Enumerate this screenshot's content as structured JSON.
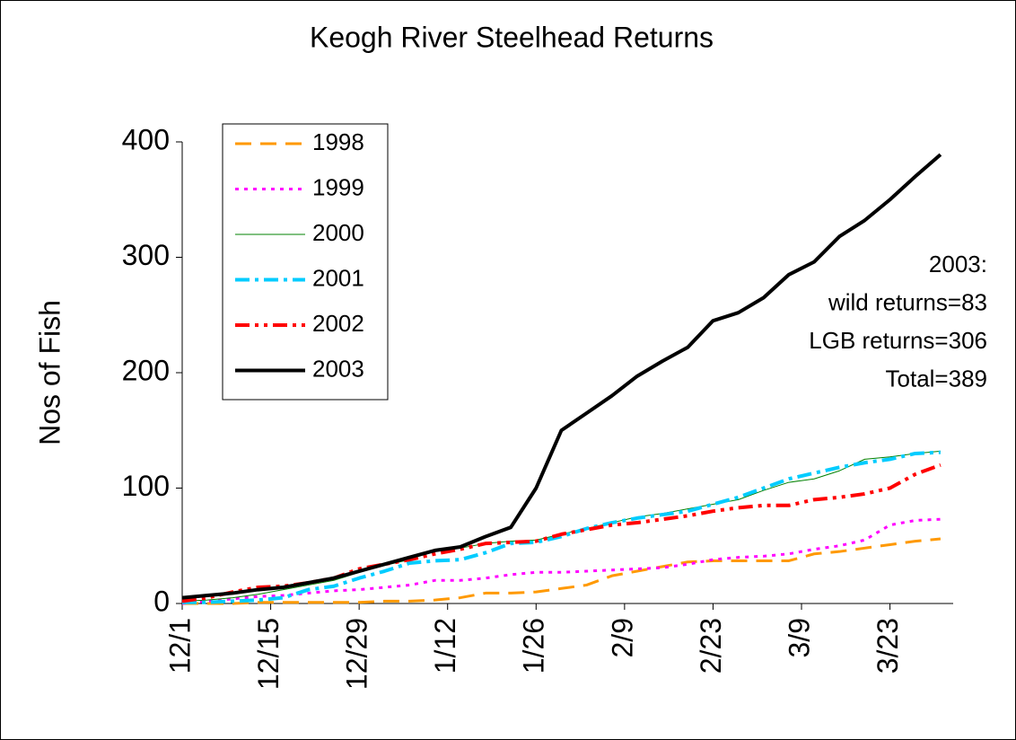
{
  "chart_data": {
    "type": "line",
    "title": "Keogh River Steelhead Returns",
    "y_label": "Nos of Fish",
    "x": [
      0,
      4,
      8,
      12,
      16,
      20,
      24,
      28,
      32,
      36,
      40,
      44,
      48,
      52,
      56,
      60,
      64,
      68,
      72,
      76,
      80,
      84,
      88,
      92,
      96,
      100,
      104,
      108,
      112,
      116,
      120
    ],
    "xlim": [
      0,
      122
    ],
    "xticks": [
      {
        "value": 0,
        "label": "12/1"
      },
      {
        "value": 14,
        "label": "12/15"
      },
      {
        "value": 28,
        "label": "12/29"
      },
      {
        "value": 42,
        "label": "1/12"
      },
      {
        "value": 56,
        "label": "1/26"
      },
      {
        "value": 70,
        "label": "2/9"
      },
      {
        "value": 84,
        "label": "2/23"
      },
      {
        "value": 98,
        "label": "3/9"
      },
      {
        "value": 112,
        "label": "3/23"
      }
    ],
    "ylim": [
      0,
      400
    ],
    "yticks": [
      0,
      100,
      200,
      300,
      400
    ],
    "series": [
      {
        "name": "1998",
        "color": "#ff9900",
        "values": [
          0,
          0,
          0,
          1,
          1,
          1,
          1,
          1,
          2,
          2,
          3,
          5,
          9,
          9,
          10,
          13,
          16,
          24,
          28,
          32,
          36,
          37,
          37,
          37,
          37,
          43,
          45,
          48,
          51,
          54,
          56
        ]
      },
      {
        "name": "1999",
        "color": "#ff00ff",
        "values": [
          0,
          2,
          4,
          6,
          7,
          9,
          11,
          12,
          14,
          16,
          20,
          20,
          22,
          25,
          27,
          27,
          28,
          29,
          30,
          31,
          34,
          38,
          40,
          41,
          43,
          47,
          50,
          55,
          68,
          72,
          73
        ]
      },
      {
        "name": "2000",
        "color": "#008000",
        "values": [
          2,
          3,
          5,
          8,
          12,
          16,
          20,
          27,
          33,
          38,
          46,
          48,
          52,
          54,
          55,
          60,
          65,
          70,
          75,
          78,
          82,
          86,
          90,
          98,
          105,
          108,
          115,
          125,
          127,
          130,
          132
        ]
      },
      {
        "name": "2001",
        "color": "#00ccff",
        "values": [
          1,
          1,
          2,
          3,
          5,
          12,
          15,
          22,
          28,
          35,
          37,
          38,
          44,
          52,
          53,
          58,
          65,
          70,
          74,
          77,
          80,
          86,
          92,
          100,
          108,
          113,
          118,
          122,
          125,
          130,
          131
        ]
      },
      {
        "name": "2002",
        "color": "#ff0000",
        "values": [
          2,
          5,
          10,
          14,
          15,
          18,
          22,
          30,
          34,
          38,
          43,
          47,
          52,
          53,
          54,
          60,
          64,
          68,
          70,
          73,
          76,
          80,
          83,
          85,
          85,
          90,
          92,
          95,
          100,
          112,
          120
        ]
      },
      {
        "name": "2003",
        "color": "#000000",
        "values": [
          5,
          7,
          9,
          12,
          14,
          18,
          22,
          28,
          34,
          40,
          46,
          49,
          58,
          66,
          100,
          150,
          165,
          180,
          197,
          210,
          222,
          245,
          252,
          265,
          285,
          296,
          318,
          332,
          350,
          370,
          389
        ]
      }
    ],
    "annotations": [
      "2003:",
      "wild returns=83",
      "LGB returns=306",
      "Total=389"
    ]
  }
}
